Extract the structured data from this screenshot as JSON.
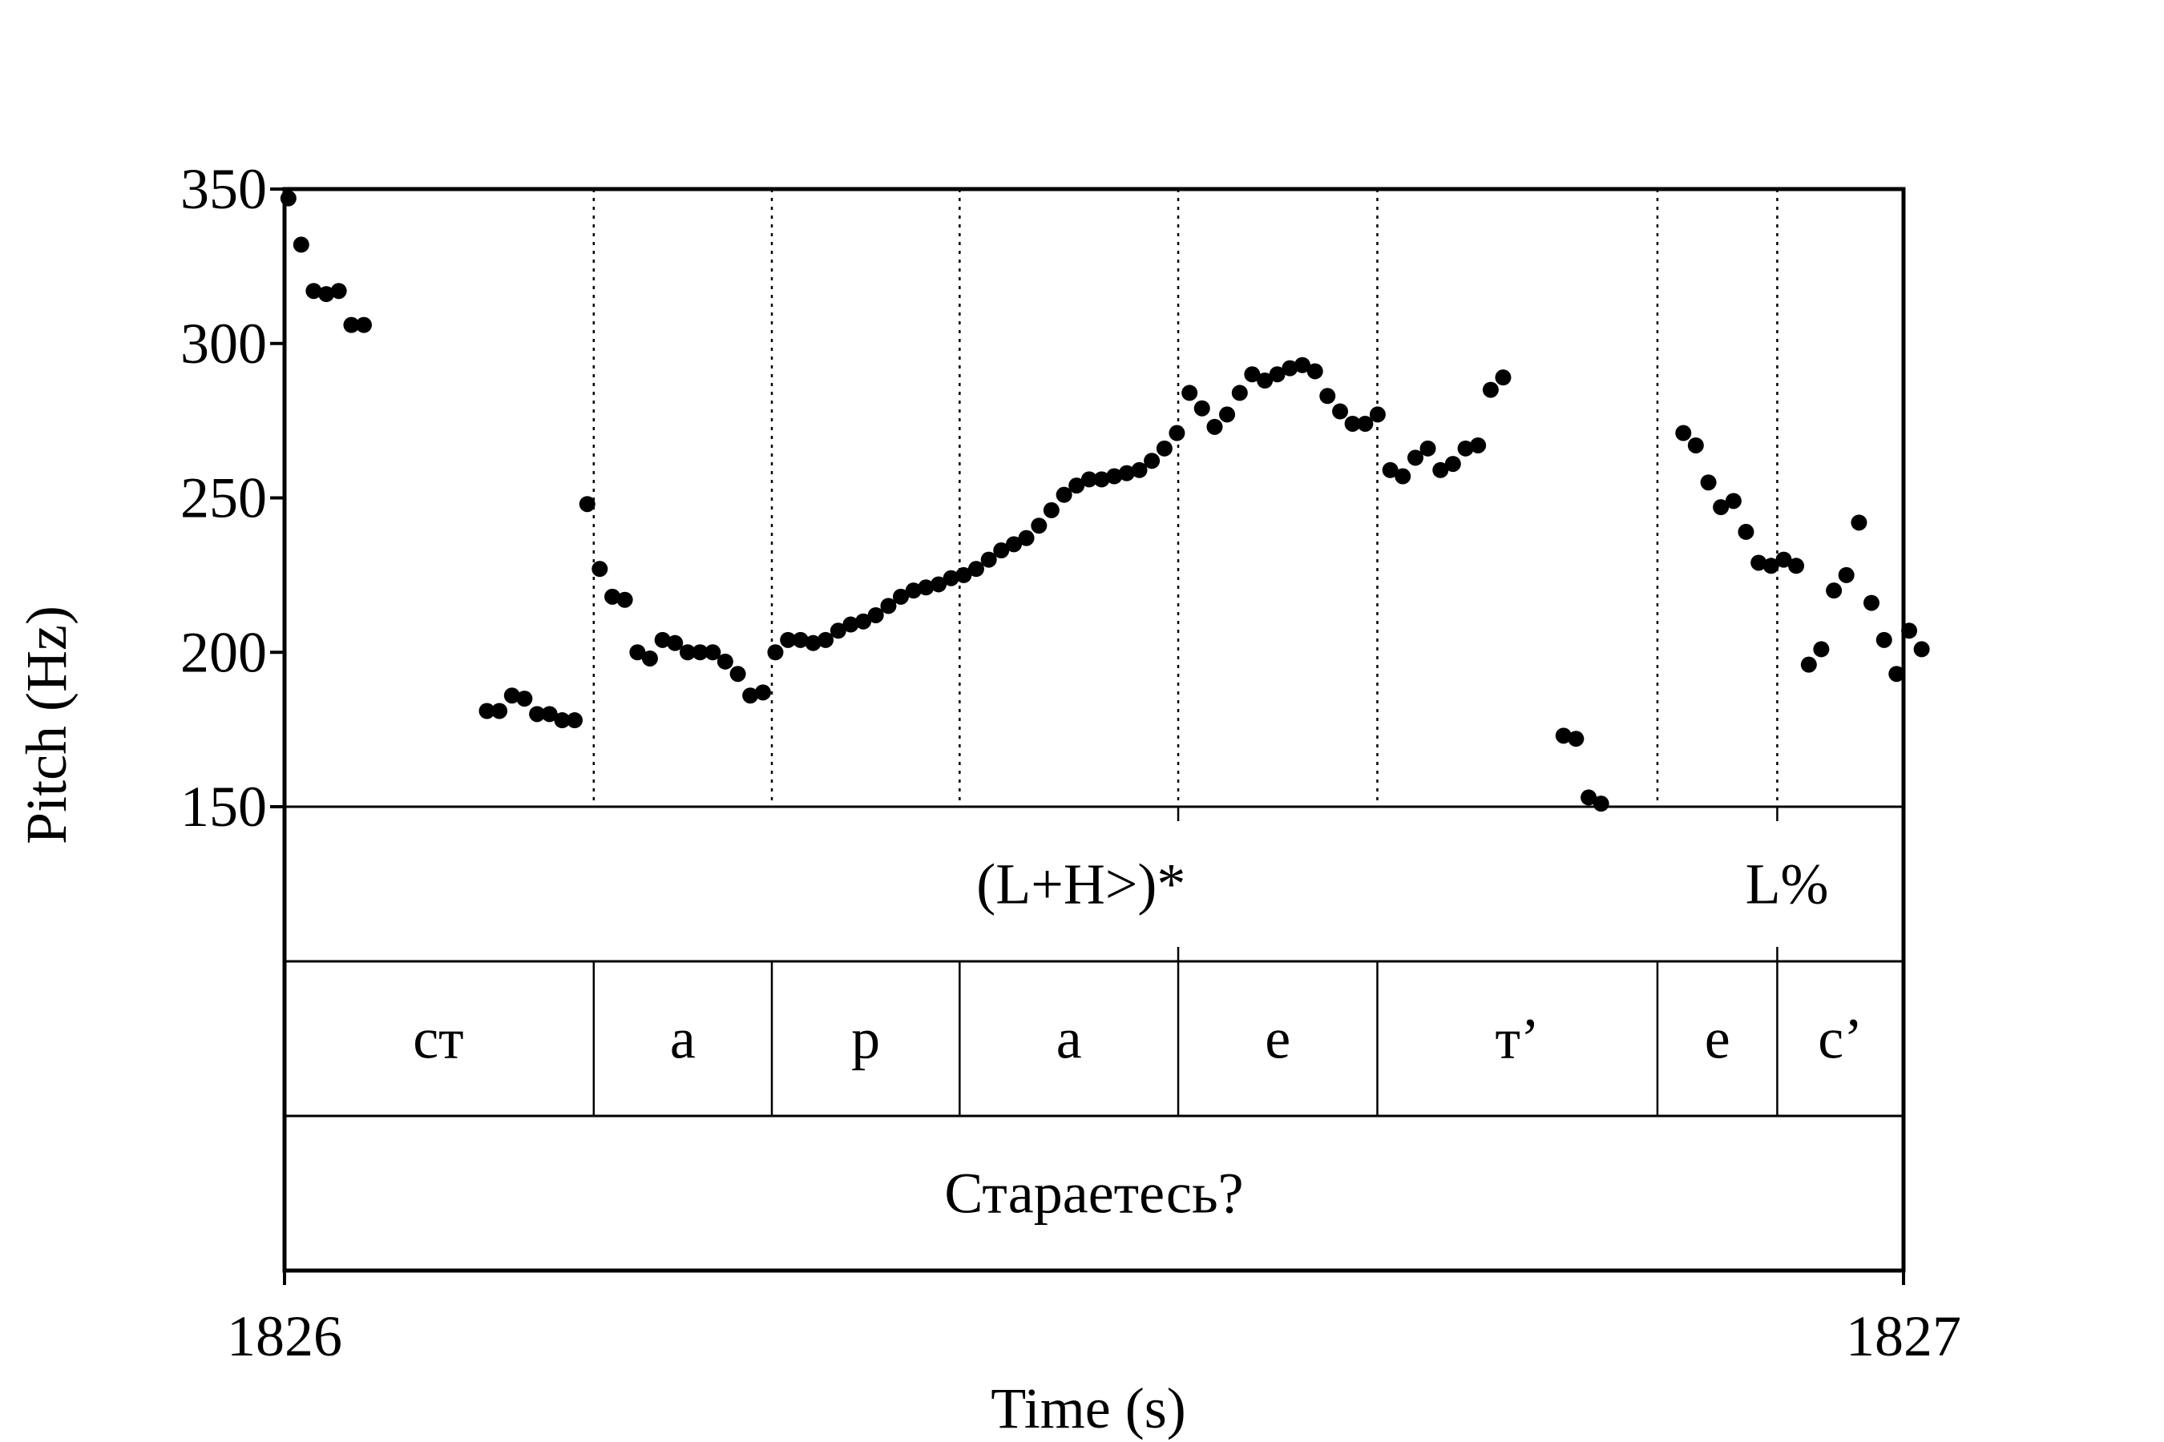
{
  "chart_data": {
    "type": "scatter",
    "title": "",
    "xlabel": "Time (s)",
    "ylabel": "Pitch (Hz)",
    "xlim": [
      1826,
      1827
    ],
    "ylim": [
      150,
      350
    ],
    "x_tick_labels": [
      "1826",
      "1827"
    ],
    "y_tick_labels": [
      "150",
      "200",
      "250",
      "300",
      "350"
    ],
    "series": [
      {
        "points": [
          [
            1826.0024,
            347
          ],
          [
            1826.0103,
            332
          ],
          [
            1826.018,
            317
          ],
          [
            1826.0258,
            316
          ],
          [
            1826.0335,
            317
          ],
          [
            1826.0413,
            306
          ],
          [
            1826.049,
            306
          ],
          [
            1826.125,
            181
          ],
          [
            1826.1327,
            181
          ],
          [
            1826.1405,
            186
          ],
          [
            1826.1482,
            185
          ],
          [
            1826.156,
            180
          ],
          [
            1826.1637,
            180
          ],
          [
            1826.1715,
            178
          ],
          [
            1826.1792,
            178
          ],
          [
            1826.187,
            248
          ],
          [
            1826.1947,
            227
          ],
          [
            1826.2025,
            218
          ],
          [
            1826.2102,
            217
          ],
          [
            1826.218,
            200
          ],
          [
            1826.2257,
            198
          ],
          [
            1826.2335,
            204
          ],
          [
            1826.2412,
            203
          ],
          [
            1826.249,
            200
          ],
          [
            1826.2567,
            200
          ],
          [
            1826.2645,
            200
          ],
          [
            1826.2722,
            197
          ],
          [
            1826.28,
            193
          ],
          [
            1826.2877,
            186
          ],
          [
            1826.2955,
            187
          ],
          [
            1826.3032,
            200
          ],
          [
            1826.311,
            204
          ],
          [
            1826.3187,
            204
          ],
          [
            1826.3265,
            203
          ],
          [
            1826.3342,
            204
          ],
          [
            1826.342,
            207
          ],
          [
            1826.3497,
            209
          ],
          [
            1826.3575,
            210
          ],
          [
            1826.3652,
            212
          ],
          [
            1826.373,
            215
          ],
          [
            1826.3807,
            218
          ],
          [
            1826.3885,
            220
          ],
          [
            1826.3962,
            221
          ],
          [
            1826.404,
            222
          ],
          [
            1826.4117,
            224
          ],
          [
            1826.4195,
            225
          ],
          [
            1826.4272,
            227
          ],
          [
            1826.435,
            230
          ],
          [
            1826.4427,
            233
          ],
          [
            1826.4505,
            235
          ],
          [
            1826.4582,
            237
          ],
          [
            1826.466,
            241
          ],
          [
            1826.4737,
            246
          ],
          [
            1826.4815,
            251
          ],
          [
            1826.4892,
            254
          ],
          [
            1826.497,
            256
          ],
          [
            1826.5047,
            256
          ],
          [
            1826.5125,
            257
          ],
          [
            1826.5202,
            258
          ],
          [
            1826.528,
            259
          ],
          [
            1826.5357,
            262
          ],
          [
            1826.5435,
            266
          ],
          [
            1826.5512,
            271
          ],
          [
            1826.559,
            284
          ],
          [
            1826.5667,
            279
          ],
          [
            1826.5745,
            273
          ],
          [
            1826.5822,
            277
          ],
          [
            1826.59,
            284
          ],
          [
            1826.5977,
            290
          ],
          [
            1826.6055,
            288
          ],
          [
            1826.6132,
            290
          ],
          [
            1826.621,
            292
          ],
          [
            1826.6287,
            293
          ],
          [
            1826.6365,
            291
          ],
          [
            1826.6442,
            283
          ],
          [
            1826.652,
            278
          ],
          [
            1826.6597,
            274
          ],
          [
            1826.6675,
            274
          ],
          [
            1826.6752,
            277
          ],
          [
            1826.683,
            259
          ],
          [
            1826.6907,
            257
          ],
          [
            1826.6985,
            263
          ],
          [
            1826.7062,
            266
          ],
          [
            1826.714,
            259
          ],
          [
            1826.7217,
            261
          ],
          [
            1826.7295,
            266
          ],
          [
            1826.7372,
            267
          ],
          [
            1826.745,
            285
          ],
          [
            1826.7527,
            289
          ],
          [
            1826.79,
            173
          ],
          [
            1826.7977,
            172
          ],
          [
            1826.8055,
            153
          ],
          [
            1826.8132,
            151
          ],
          [
            1826.864,
            271
          ],
          [
            1826.8717,
            267
          ],
          [
            1826.8795,
            255
          ],
          [
            1826.8872,
            247
          ],
          [
            1826.895,
            249
          ],
          [
            1826.9027,
            239
          ],
          [
            1826.9105,
            229
          ],
          [
            1826.9182,
            228
          ],
          [
            1826.926,
            230
          ],
          [
            1826.9337,
            228
          ],
          [
            1826.9415,
            196
          ],
          [
            1826.9492,
            201
          ],
          [
            1826.957,
            220
          ],
          [
            1826.9647,
            225
          ],
          [
            1826.9725,
            242
          ],
          [
            1826.9802,
            216
          ],
          [
            1826.988,
            204
          ],
          [
            1826.9957,
            193
          ],
          [
            1827.0035,
            207
          ],
          [
            1827.0112,
            201
          ]
        ]
      }
    ],
    "boundaries": [
      1826.191,
      1826.301,
      1826.417,
      1826.552,
      1826.675,
      1826.848,
      1826.922
    ],
    "tiers": [
      {
        "labels": [
          {
            "text": "(L+H>)*",
            "x": 1826.492
          },
          {
            "text": "L%",
            "x": 1826.928
          }
        ]
      },
      {
        "labels": [
          {
            "text": "ст",
            "x": 1826.095
          },
          {
            "text": "а",
            "x": 1826.246
          },
          {
            "text": "р",
            "x": 1826.359
          },
          {
            "text": "а",
            "x": 1826.4845
          },
          {
            "text": "е",
            "x": 1826.6135
          },
          {
            "text": "т’",
            "x": 1826.7615
          },
          {
            "text": "е",
            "x": 1826.885
          },
          {
            "text": "с’",
            "x": 1826.961
          }
        ]
      },
      {
        "labels": [
          {
            "text": "Стараетесь?",
            "x": 1826.5
          }
        ]
      }
    ]
  }
}
